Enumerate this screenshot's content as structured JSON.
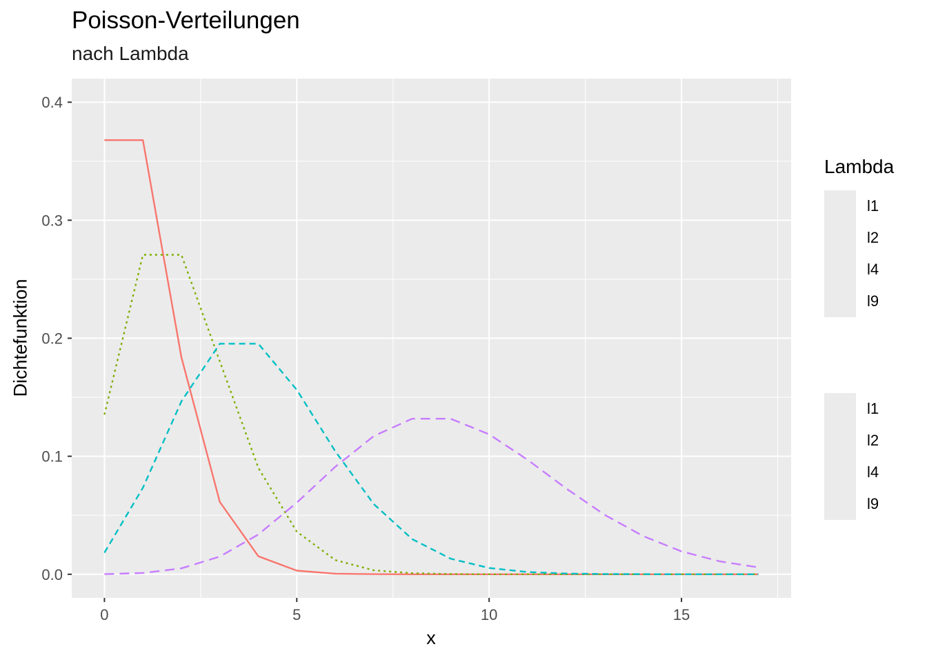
{
  "chart_data": {
    "type": "line",
    "title": "Poisson-Verteilungen",
    "subtitle": "nach Lambda",
    "xlabel": "x",
    "ylabel": "Dichtefunktion",
    "xlim": [
      -0.85,
      17.85
    ],
    "ylim": [
      -0.02,
      0.42
    ],
    "xticks": [
      0,
      5,
      10,
      15
    ],
    "yticks": [
      0.0,
      0.1,
      0.2,
      0.3,
      0.4
    ],
    "ytick_labels": [
      "0.0",
      "0.1",
      "0.2",
      "0.3",
      "0.4"
    ],
    "x": [
      0,
      1,
      2,
      3,
      4,
      5,
      6,
      7,
      8,
      9,
      10,
      11,
      12,
      13,
      14,
      15,
      16,
      17
    ],
    "grid": true,
    "legend_color_title": "Lambda",
    "series": [
      {
        "name": "l1",
        "color": "#F8766D",
        "linetype": "solid",
        "values": [
          0.3679,
          0.3679,
          0.1839,
          0.0613,
          0.0153,
          0.0031,
          0.0005,
          0.0001,
          0.0,
          0.0,
          0.0,
          0.0,
          0.0,
          0.0,
          0.0,
          0.0,
          0.0,
          0.0
        ]
      },
      {
        "name": "l2",
        "color": "#7CAE00",
        "linetype": "dotted",
        "values": [
          0.1353,
          0.2707,
          0.2707,
          0.1804,
          0.0902,
          0.0361,
          0.012,
          0.0034,
          0.0009,
          0.0002,
          0.0,
          0.0,
          0.0,
          0.0,
          0.0,
          0.0,
          0.0,
          0.0
        ]
      },
      {
        "name": "l4",
        "color": "#00BFC4",
        "linetype": "dashed",
        "values": [
          0.0183,
          0.0733,
          0.1465,
          0.1954,
          0.1954,
          0.1563,
          0.1042,
          0.0595,
          0.0298,
          0.0132,
          0.0053,
          0.0019,
          0.0006,
          0.0002,
          0.0001,
          0.0,
          0.0,
          0.0
        ]
      },
      {
        "name": "l9",
        "color": "#C77CFF",
        "linetype": "longdash",
        "values": [
          0.0001,
          0.0011,
          0.005,
          0.015,
          0.0337,
          0.0607,
          0.0911,
          0.1171,
          0.1318,
          0.1318,
          0.1186,
          0.097,
          0.0728,
          0.0504,
          0.0324,
          0.0194,
          0.0109,
          0.0058
        ]
      }
    ]
  }
}
